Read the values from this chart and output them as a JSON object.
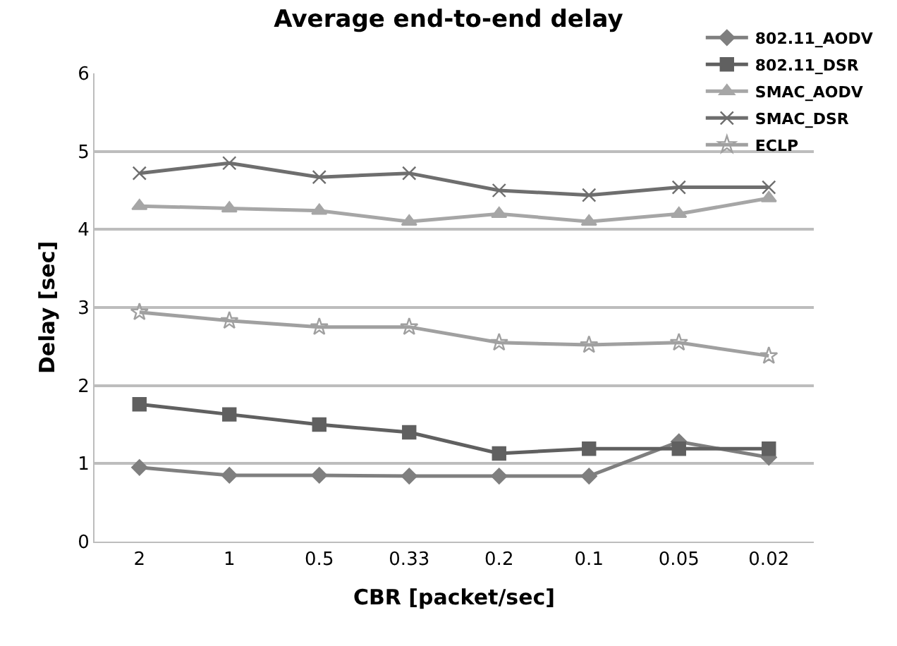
{
  "chart_data": {
    "type": "line",
    "title": "Average end-to-end delay",
    "xlabel": "CBR [packet/sec]",
    "ylabel": "Delay [sec]",
    "categories": [
      "2",
      "1",
      "0.5",
      "0.33",
      "0.2",
      "0.1",
      "0.05",
      "0.02"
    ],
    "series": [
      {
        "name": "802.11_AODV",
        "color": "#7f7f7f",
        "marker": "diamond",
        "values": [
          0.95,
          0.85,
          0.85,
          0.84,
          0.84,
          0.84,
          1.28,
          1.08
        ]
      },
      {
        "name": "802.11_DSR",
        "color": "#606060",
        "marker": "square",
        "values": [
          1.76,
          1.63,
          1.5,
          1.4,
          1.13,
          1.19,
          1.19,
          1.19
        ]
      },
      {
        "name": "SMAC_AODV",
        "color": "#a6a6a6",
        "marker": "triangle",
        "values": [
          4.3,
          4.27,
          4.24,
          4.1,
          4.2,
          4.1,
          4.2,
          4.4
        ]
      },
      {
        "name": "SMAC_DSR",
        "color": "#6e6e6e",
        "marker": "cross",
        "values": [
          4.72,
          4.85,
          4.67,
          4.72,
          4.5,
          4.44,
          4.54,
          4.54
        ]
      },
      {
        "name": "ECLP",
        "color": "#a0a0a0",
        "marker": "star",
        "values": [
          2.94,
          2.83,
          2.75,
          2.75,
          2.55,
          2.52,
          2.55,
          2.38
        ]
      }
    ],
    "ylim": [
      0,
      6
    ],
    "yticks": [
      0,
      1,
      2,
      3,
      4,
      5,
      6
    ],
    "grid": "y",
    "legend": "top right"
  }
}
